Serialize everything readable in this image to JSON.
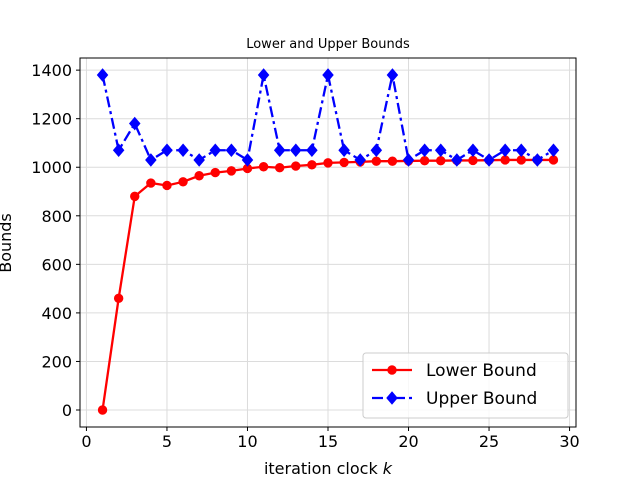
{
  "chart_data": {
    "type": "line",
    "title": "Lower and Upper Bounds",
    "xlabel": "iteration clock ",
    "xlabel_var": "k",
    "ylabel": "Bounds",
    "xlim": [
      -0.4,
      30.4
    ],
    "ylim": [
      -70,
      1450
    ],
    "x_ticks": [
      0,
      5,
      10,
      15,
      20,
      25,
      30
    ],
    "y_ticks": [
      0,
      200,
      400,
      600,
      800,
      1000,
      1200,
      1400
    ],
    "grid": true,
    "legend_position": "lower-right",
    "x": [
      1,
      2,
      3,
      4,
      5,
      6,
      7,
      8,
      9,
      10,
      11,
      12,
      13,
      14,
      15,
      16,
      17,
      18,
      19,
      20,
      21,
      22,
      23,
      24,
      25,
      26,
      27,
      28,
      29
    ],
    "series": [
      {
        "name": "Lower Bound",
        "color": "#ff0000",
        "marker": "circle",
        "linestyle": "solid",
        "values": [
          0,
          460,
          880,
          935,
          925,
          940,
          965,
          978,
          985,
          995,
          1002,
          998,
          1005,
          1010,
          1018,
          1020,
          1022,
          1025,
          1025,
          1026,
          1027,
          1027,
          1028,
          1028,
          1029,
          1030,
          1030,
          1030,
          1030
        ]
      },
      {
        "name": "Upper Bound",
        "color": "#0000ff",
        "marker": "diamond",
        "linestyle": "dashdot",
        "values": [
          1380,
          1070,
          1180,
          1030,
          1070,
          1070,
          1030,
          1070,
          1070,
          1030,
          1380,
          1070,
          1070,
          1070,
          1380,
          1070,
          1030,
          1070,
          1380,
          1030,
          1070,
          1070,
          1030,
          1070,
          1030,
          1070,
          1070,
          1030,
          1070
        ]
      }
    ]
  }
}
